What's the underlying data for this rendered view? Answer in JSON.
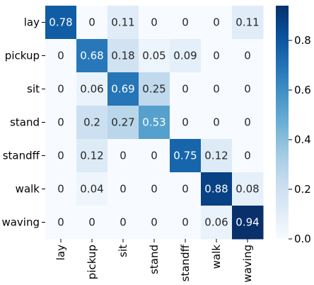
{
  "chart_data": {
    "type": "heatmap",
    "title": "",
    "xlabel": "",
    "ylabel": "",
    "row_labels": [
      "lay",
      "pickup",
      "sit",
      "stand",
      "standff",
      "walk",
      "waving"
    ],
    "col_labels": [
      "lay",
      "pickup",
      "sit",
      "stand",
      "standff",
      "walk",
      "waving"
    ],
    "values": [
      [
        0.78,
        0,
        0.11,
        0,
        0,
        0,
        0.11
      ],
      [
        0,
        0.68,
        0.18,
        0.05,
        0.09,
        0,
        0
      ],
      [
        0,
        0.06,
        0.69,
        0.25,
        0,
        0,
        0
      ],
      [
        0,
        0.2,
        0.27,
        0.53,
        0,
        0,
        0
      ],
      [
        0,
        0.12,
        0,
        0,
        0.75,
        0.12,
        0
      ],
      [
        0,
        0.04,
        0,
        0,
        0,
        0.88,
        0.08
      ],
      [
        0,
        0,
        0,
        0,
        0,
        0.06,
        0.94
      ]
    ],
    "value_labels": [
      [
        "0.78",
        "0",
        "0.11",
        "0",
        "0",
        "0",
        "0.11"
      ],
      [
        "0",
        "0.68",
        "0.18",
        "0.05",
        "0.09",
        "0",
        "0"
      ],
      [
        "0",
        "0.06",
        "0.69",
        "0.25",
        "0",
        "0",
        "0"
      ],
      [
        "0",
        "0.2",
        "0.27",
        "0.53",
        "0",
        "0",
        "0"
      ],
      [
        "0",
        "0.12",
        "0",
        "0",
        "0.75",
        "0.12",
        "0"
      ],
      [
        "0",
        "0.04",
        "0",
        "0",
        "0",
        "0.88",
        "0.08"
      ],
      [
        "0",
        "0",
        "0",
        "0",
        "0",
        "0.06",
        "0.94"
      ]
    ],
    "colormap": "Blues",
    "vmin": 0,
    "vmax": 0.94,
    "colorbar": {
      "ticks": [
        0.0,
        0.2,
        0.4,
        0.6,
        0.8
      ],
      "tick_labels": [
        "0.0",
        "0.2",
        "0.4",
        "0.6",
        "0.8"
      ]
    },
    "grid": false,
    "legend": "colorbar-right"
  }
}
